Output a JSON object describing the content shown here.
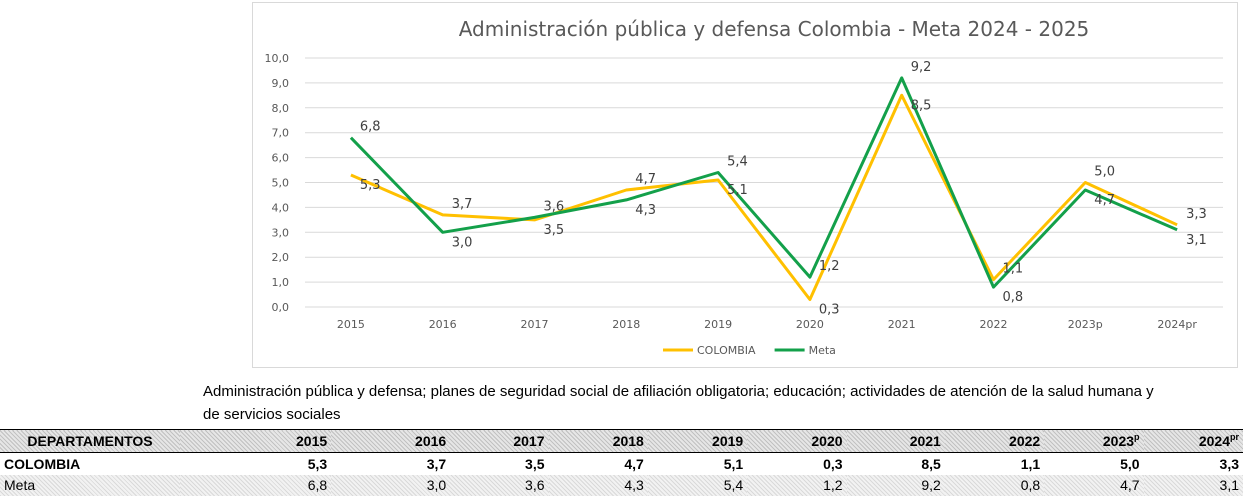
{
  "chart_data": {
    "type": "line",
    "title": "Administración pública y defensa Colombia - Meta 2024 - 2025",
    "categories": [
      "2015",
      "2016",
      "2017",
      "2018",
      "2019",
      "2020",
      "2021",
      "2022",
      "2023p",
      "2024pr"
    ],
    "series": [
      {
        "name": "COLOMBIA",
        "color": "#ffc000",
        "values": [
          5.3,
          3.7,
          3.5,
          4.7,
          5.1,
          0.3,
          8.5,
          1.1,
          5.0,
          3.3
        ],
        "labels": [
          "5,3",
          "3,7",
          "3,5",
          "4,7",
          "5,1",
          "0,3",
          "8,5",
          "1,1",
          "5,0",
          "3,3"
        ]
      },
      {
        "name": "Meta",
        "color": "#13a04a",
        "values": [
          6.8,
          3.0,
          3.6,
          4.3,
          5.4,
          1.2,
          9.2,
          0.8,
          4.7,
          3.1
        ],
        "labels": [
          "6,8",
          "3,0",
          "3,6",
          "4,3",
          "5,4",
          "1,2",
          "9,2",
          "0,8",
          "4,7",
          "3,1"
        ]
      }
    ],
    "ylim": [
      0,
      10
    ],
    "yticks": [
      "0,0",
      "1,0",
      "2,0",
      "3,0",
      "4,0",
      "5,0",
      "6,0",
      "7,0",
      "8,0",
      "9,0",
      "10,0"
    ],
    "grid": true,
    "legend_position": "bottom"
  },
  "description": {
    "line1": "Administración pública y defensa; planes de seguridad social de afiliación obligatoria; educación; actividades de atención de la salud humana y",
    "line2": "de servicios sociales"
  },
  "table": {
    "header": {
      "first": "DEPARTAMENTOS",
      "years": [
        "2015",
        "2016",
        "2017",
        "2018",
        "2019",
        "2020",
        "2021",
        "2022",
        "2023",
        "2024"
      ],
      "sup_2023": "p",
      "sup_2024": "pr"
    },
    "rows": [
      {
        "name": "COLOMBIA",
        "values": [
          "5,3",
          "3,7",
          "3,5",
          "4,7",
          "5,1",
          "0,3",
          "8,5",
          "1,1",
          "5,0",
          "3,3"
        ]
      },
      {
        "name": "Meta",
        "values": [
          "6,8",
          "3,0",
          "3,6",
          "4,3",
          "5,4",
          "1,2",
          "9,2",
          "0,8",
          "4,7",
          "3,1"
        ]
      }
    ]
  }
}
